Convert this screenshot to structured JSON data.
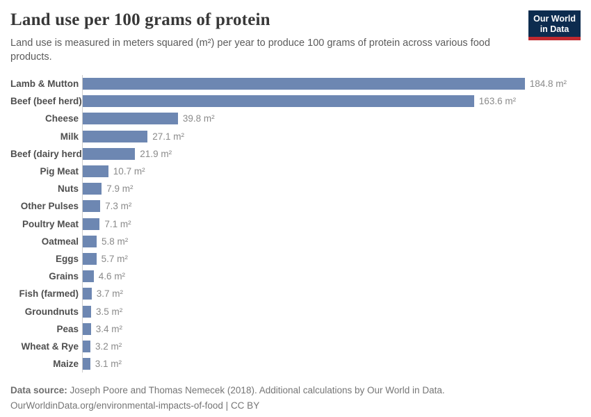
{
  "header": {
    "title": "Land use per 100 grams of protein",
    "subtitle": "Land use is measured in meters squared (m²) per year to produce 100 grams of protein across various food products.",
    "logo_line1": "Our World",
    "logo_line2": "in Data"
  },
  "chart_data": {
    "type": "bar",
    "orientation": "horizontal",
    "title": "Land use per 100 grams of protein",
    "xlabel": "",
    "ylabel": "",
    "xlim": [
      0,
      190
    ],
    "grid": false,
    "legend": false,
    "value_unit": "m²",
    "categories": [
      "Lamb & Mutton",
      "Beef (beef herd)",
      "Cheese",
      "Milk",
      "Beef (dairy herd)",
      "Pig Meat",
      "Nuts",
      "Other Pulses",
      "Poultry Meat",
      "Oatmeal",
      "Eggs",
      "Grains",
      "Fish (farmed)",
      "Groundnuts",
      "Peas",
      "Wheat & Rye",
      "Maize"
    ],
    "values": [
      184.8,
      163.6,
      39.8,
      27.1,
      21.9,
      10.7,
      7.9,
      7.3,
      7.1,
      5.8,
      5.7,
      4.6,
      3.7,
      3.5,
      3.4,
      3.2,
      3.1
    ]
  },
  "colors": {
    "bar": "#6d87b2",
    "axis": "#cccccc",
    "logo_navy": "#0d2c4f",
    "logo_red": "#c0292f"
  },
  "footer": {
    "source_label": "Data source:",
    "source_text": "Joseph Poore and Thomas Nemecek (2018). Additional calculations by Our World in Data.",
    "url_text": "OurWorldinData.org/environmental-impacts-of-food",
    "separator": "|",
    "license_text": "CC BY"
  }
}
